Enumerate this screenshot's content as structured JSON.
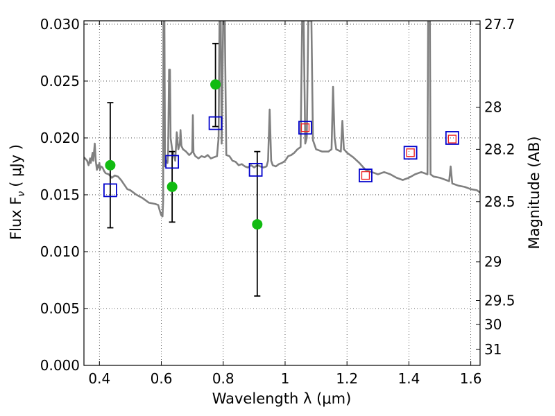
{
  "chart_data": {
    "type": "scatter",
    "xlabel": "Wavelength  λ (μm)",
    "ylabel": "Flux  F",
    "ylabel_sub": "ν",
    "ylabel_unit": "( μJy )",
    "y2label": "Magnitude (AB)",
    "xlim": [
      0.35,
      1.63
    ],
    "ylim": [
      0.0,
      0.0303
    ],
    "grid": true,
    "x_ticks": [
      {
        "value": 0.4,
        "label": "0.4"
      },
      {
        "value": 0.6,
        "label": "0.6"
      },
      {
        "value": 0.8,
        "label": "0.8"
      },
      {
        "value": 1.0,
        "label": "1"
      },
      {
        "value": 1.2,
        "label": "1.2"
      },
      {
        "value": 1.4,
        "label": "1.4"
      },
      {
        "value": 1.6,
        "label": "1.6"
      }
    ],
    "y_ticks": [
      {
        "value": 0.0,
        "label": "0.000"
      },
      {
        "value": 0.005,
        "label": "0.005"
      },
      {
        "value": 0.01,
        "label": "0.010"
      },
      {
        "value": 0.015,
        "label": "0.015"
      },
      {
        "value": 0.02,
        "label": "0.020"
      },
      {
        "value": 0.025,
        "label": "0.025"
      },
      {
        "value": 0.03,
        "label": "0.030"
      }
    ],
    "y2_ticks": [
      {
        "flux": 0.03,
        "label": "27.7"
      },
      {
        "flux": 0.0227,
        "label": "28"
      },
      {
        "flux": 0.019,
        "label": "28.2"
      },
      {
        "flux": 0.0144,
        "label": "28.5"
      },
      {
        "flux": 0.0091,
        "label": "29"
      },
      {
        "flux": 0.0057,
        "label": "29.5"
      },
      {
        "flux": 0.0036,
        "label": "30"
      },
      {
        "flux": 0.0014,
        "label": "31"
      }
    ],
    "series": [
      {
        "kind": "spectrum",
        "color": "#808080",
        "points": [
          [
            0.35,
            0.0183
          ],
          [
            0.36,
            0.018
          ],
          [
            0.365,
            0.0176
          ],
          [
            0.37,
            0.0182
          ],
          [
            0.372,
            0.0178
          ],
          [
            0.378,
            0.0187
          ],
          [
            0.38,
            0.018
          ],
          [
            0.385,
            0.0195
          ],
          [
            0.388,
            0.018
          ],
          [
            0.392,
            0.0172
          ],
          [
            0.395,
            0.0176
          ],
          [
            0.398,
            0.0174
          ],
          [
            0.4,
            0.0178
          ],
          [
            0.402,
            0.0172
          ],
          [
            0.405,
            0.0175
          ],
          [
            0.41,
            0.0174
          ],
          [
            0.415,
            0.0171
          ],
          [
            0.42,
            0.0169
          ],
          [
            0.43,
            0.0168
          ],
          [
            0.44,
            0.0165
          ],
          [
            0.45,
            0.0167
          ],
          [
            0.46,
            0.0166
          ],
          [
            0.47,
            0.0163
          ],
          [
            0.48,
            0.0159
          ],
          [
            0.49,
            0.0155
          ],
          [
            0.5,
            0.0154
          ],
          [
            0.52,
            0.015
          ],
          [
            0.54,
            0.0147
          ],
          [
            0.56,
            0.0143
          ],
          [
            0.58,
            0.0142
          ],
          [
            0.59,
            0.0141
          ],
          [
            0.595,
            0.0136
          ],
          [
            0.6,
            0.0132
          ],
          [
            0.604,
            0.0131
          ],
          [
            0.606,
            0.0145
          ],
          [
            0.607,
            0.0303
          ],
          [
            0.61,
            0.0303
          ],
          [
            0.612,
            0.0175
          ],
          [
            0.615,
            0.018
          ],
          [
            0.62,
            0.0178
          ],
          [
            0.622,
            0.0185
          ],
          [
            0.625,
            0.026
          ],
          [
            0.628,
            0.026
          ],
          [
            0.63,
            0.02
          ],
          [
            0.635,
            0.019
          ],
          [
            0.64,
            0.0185
          ],
          [
            0.645,
            0.018
          ],
          [
            0.65,
            0.0205
          ],
          [
            0.655,
            0.019
          ],
          [
            0.66,
            0.0195
          ],
          [
            0.662,
            0.0207
          ],
          [
            0.665,
            0.0193
          ],
          [
            0.67,
            0.019
          ],
          [
            0.68,
            0.0188
          ],
          [
            0.69,
            0.0185
          ],
          [
            0.695,
            0.0186
          ],
          [
            0.7,
            0.0188
          ],
          [
            0.702,
            0.022
          ],
          [
            0.704,
            0.0187
          ],
          [
            0.71,
            0.0184
          ],
          [
            0.72,
            0.0182
          ],
          [
            0.73,
            0.0184
          ],
          [
            0.74,
            0.0183
          ],
          [
            0.75,
            0.0185
          ],
          [
            0.76,
            0.0182
          ],
          [
            0.77,
            0.0183
          ],
          [
            0.78,
            0.0184
          ],
          [
            0.785,
            0.02
          ],
          [
            0.788,
            0.0303
          ],
          [
            0.792,
            0.0303
          ],
          [
            0.795,
            0.0195
          ],
          [
            0.8,
            0.0303
          ],
          [
            0.805,
            0.0303
          ],
          [
            0.81,
            0.0185
          ],
          [
            0.82,
            0.0184
          ],
          [
            0.83,
            0.018
          ],
          [
            0.84,
            0.0179
          ],
          [
            0.85,
            0.0176
          ],
          [
            0.86,
            0.0177
          ],
          [
            0.87,
            0.0175
          ],
          [
            0.88,
            0.0174
          ],
          [
            0.89,
            0.0176
          ],
          [
            0.9,
            0.0174
          ],
          [
            0.91,
            0.0176
          ],
          [
            0.92,
            0.0175
          ],
          [
            0.93,
            0.0174
          ],
          [
            0.94,
            0.0175
          ],
          [
            0.945,
            0.018
          ],
          [
            0.95,
            0.0225
          ],
          [
            0.955,
            0.018
          ],
          [
            0.96,
            0.0176
          ],
          [
            0.97,
            0.0175
          ],
          [
            0.98,
            0.0177
          ],
          [
            0.99,
            0.0178
          ],
          [
            1.0,
            0.018
          ],
          [
            1.01,
            0.0184
          ],
          [
            1.02,
            0.0185
          ],
          [
            1.03,
            0.0187
          ],
          [
            1.04,
            0.019
          ],
          [
            1.05,
            0.0192
          ],
          [
            1.055,
            0.0303
          ],
          [
            1.06,
            0.0303
          ],
          [
            1.065,
            0.0195
          ],
          [
            1.07,
            0.02
          ],
          [
            1.075,
            0.0303
          ],
          [
            1.085,
            0.0303
          ],
          [
            1.09,
            0.0198
          ],
          [
            1.1,
            0.019
          ],
          [
            1.12,
            0.0188
          ],
          [
            1.14,
            0.0188
          ],
          [
            1.15,
            0.019
          ],
          [
            1.155,
            0.0245
          ],
          [
            1.16,
            0.02
          ],
          [
            1.165,
            0.019
          ],
          [
            1.18,
            0.0188
          ],
          [
            1.185,
            0.0215
          ],
          [
            1.19,
            0.019
          ],
          [
            1.2,
            0.0187
          ],
          [
            1.22,
            0.0183
          ],
          [
            1.24,
            0.0178
          ],
          [
            1.26,
            0.0172
          ],
          [
            1.28,
            0.017
          ],
          [
            1.3,
            0.0168
          ],
          [
            1.32,
            0.017
          ],
          [
            1.34,
            0.0168
          ],
          [
            1.36,
            0.0165
          ],
          [
            1.38,
            0.0163
          ],
          [
            1.4,
            0.0165
          ],
          [
            1.42,
            0.0168
          ],
          [
            1.44,
            0.017
          ],
          [
            1.46,
            0.0168
          ],
          [
            1.462,
            0.0303
          ],
          [
            1.468,
            0.0303
          ],
          [
            1.47,
            0.0168
          ],
          [
            1.48,
            0.0166
          ],
          [
            1.5,
            0.0165
          ],
          [
            1.52,
            0.0163
          ],
          [
            1.53,
            0.0162
          ],
          [
            1.535,
            0.0175
          ],
          [
            1.54,
            0.016
          ],
          [
            1.56,
            0.0158
          ],
          [
            1.58,
            0.0157
          ],
          [
            1.6,
            0.0155
          ],
          [
            1.62,
            0.0154
          ],
          [
            1.63,
            0.0152
          ]
        ]
      },
      {
        "kind": "observed",
        "color": "#11bb11",
        "points": [
          {
            "x": 0.435,
            "y": 0.0176,
            "err_lo": 0.0121,
            "err_hi": 0.0231
          },
          {
            "x": 0.635,
            "y": 0.0157,
            "err_lo": 0.0126,
            "err_hi": 0.0188
          },
          {
            "x": 0.775,
            "y": 0.0247,
            "err_lo": 0.021,
            "err_hi": 0.0283
          },
          {
            "x": 0.91,
            "y": 0.0124,
            "err_lo": 0.0061,
            "err_hi": 0.0188
          }
        ]
      },
      {
        "kind": "model",
        "color": "#0000cc",
        "points": [
          {
            "x": 0.435,
            "y": 0.0154
          },
          {
            "x": 0.635,
            "y": 0.0179
          },
          {
            "x": 0.775,
            "y": 0.0213
          },
          {
            "x": 0.905,
            "y": 0.0172
          },
          {
            "x": 1.065,
            "y": 0.0209
          },
          {
            "x": 1.26,
            "y": 0.0167
          },
          {
            "x": 1.405,
            "y": 0.0187
          },
          {
            "x": 1.54,
            "y": 0.02
          }
        ]
      },
      {
        "kind": "predicted",
        "color": "#ee2222",
        "points": [
          {
            "x": 1.065,
            "y": 0.0209
          },
          {
            "x": 1.26,
            "y": 0.0167
          },
          {
            "x": 1.405,
            "y": 0.0187
          },
          {
            "x": 1.54,
            "y": 0.0199
          }
        ]
      }
    ]
  }
}
